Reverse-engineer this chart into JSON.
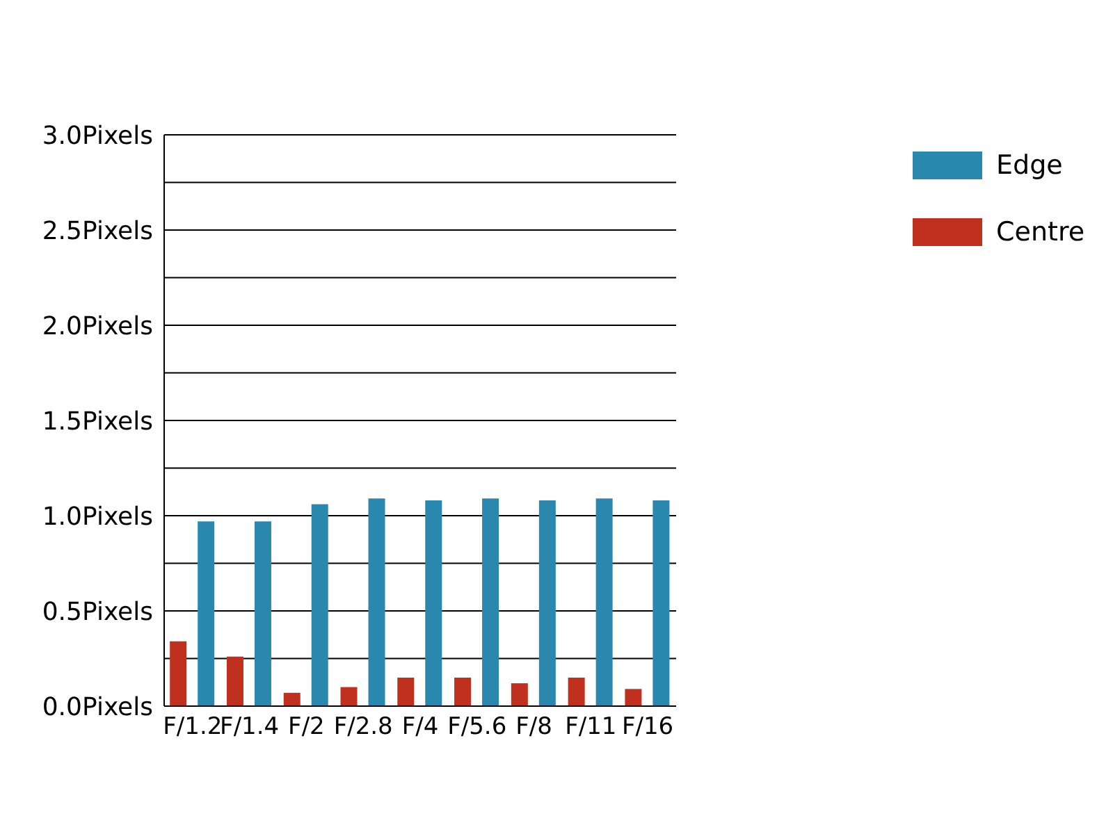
{
  "chart_data": {
    "type": "bar",
    "categories": [
      "F/1.2",
      "F/1.4",
      "F/2",
      "F/2.8",
      "F/4",
      "F/5.6",
      "F/8",
      "F/11",
      "F/16"
    ],
    "series": [
      {
        "name": "Centre",
        "color": "#c0301f",
        "values": [
          0.34,
          0.26,
          0.07,
          0.1,
          0.15,
          0.15,
          0.12,
          0.15,
          0.09
        ]
      },
      {
        "name": "Edge",
        "color": "#2a87ad",
        "values": [
          0.97,
          0.97,
          1.06,
          1.09,
          1.08,
          1.09,
          1.08,
          1.09,
          1.08
        ]
      }
    ],
    "ylim": [
      0,
      3
    ],
    "yticks": [
      {
        "value": 0,
        "label": "0.0Pixels"
      },
      {
        "value": 0.25,
        "label": null
      },
      {
        "value": 0.5,
        "label": "0.5Pixels"
      },
      {
        "value": 0.75,
        "label": null
      },
      {
        "value": 1,
        "label": "1.0Pixels"
      },
      {
        "value": 1.25,
        "label": null
      },
      {
        "value": 1.5,
        "label": "1.5Pixels"
      },
      {
        "value": 1.75,
        "label": null
      },
      {
        "value": 2,
        "label": "2.0Pixels"
      },
      {
        "value": 2.25,
        "label": null
      },
      {
        "value": 2.5,
        "label": "2.5Pixels"
      },
      {
        "value": 2.75,
        "label": null
      },
      {
        "value": 3,
        "label": "3.0Pixels"
      }
    ],
    "grid": "y",
    "legend": "top right"
  }
}
